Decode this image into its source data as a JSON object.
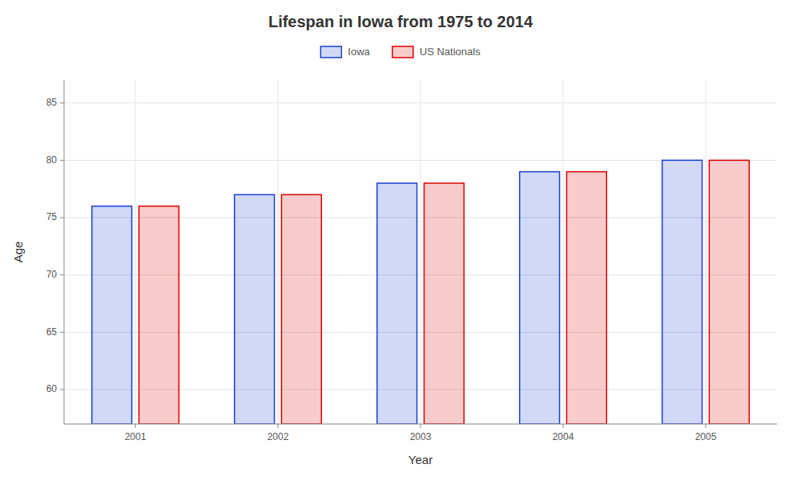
{
  "chart_data": {
    "type": "bar",
    "title": "Lifespan in Iowa from 1975 to 2014",
    "x_label": "Year",
    "y_label": "Age",
    "categories": [
      "2001",
      "2002",
      "2003",
      "2004",
      "2005"
    ],
    "series": [
      {
        "name": "Iowa",
        "color": "#1a3fd4",
        "values": [
          76,
          77,
          78,
          79,
          80
        ]
      },
      {
        "name": "US Nationals",
        "color": "#dd0000",
        "values": [
          76,
          77,
          78,
          79,
          80
        ]
      }
    ],
    "ylim": [
      57,
      87
    ],
    "yticks": [
      60,
      65,
      70,
      75,
      80,
      85
    ],
    "grid": true,
    "legend": "top"
  }
}
